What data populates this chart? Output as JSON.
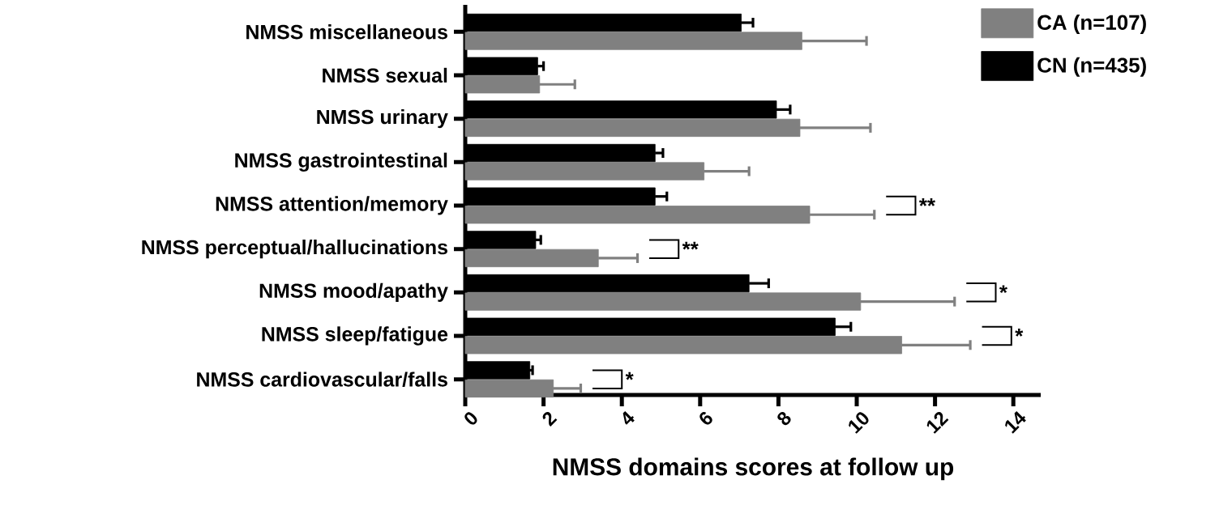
{
  "chart_data": {
    "type": "bar",
    "orientation": "horizontal",
    "xlabel": "NMSS domains scores at follow up",
    "categories": [
      "NMSS miscellaneous",
      "NMSS sexual",
      "NMSS urinary",
      "NMSS gastrointestinal",
      "NMSS attention/memory",
      "NMSS perceptual/hallucinations",
      "NMSS mood/apathy",
      "NMSS sleep/fatigue",
      "NMSS cardiovascular/falls"
    ],
    "series": [
      {
        "name": "CA (n=107)",
        "color": "#808080",
        "values": [
          8.6,
          1.9,
          8.55,
          6.1,
          8.8,
          3.4,
          10.1,
          11.15,
          2.25
        ],
        "errors": [
          1.65,
          0.9,
          1.8,
          1.15,
          1.65,
          1.0,
          2.4,
          1.75,
          0.7
        ]
      },
      {
        "name": "CN (n=435)",
        "color": "#000000",
        "values": [
          7.05,
          1.85,
          7.95,
          4.85,
          4.85,
          1.8,
          7.25,
          9.45,
          1.65
        ],
        "errors": [
          0.3,
          0.15,
          0.35,
          0.2,
          0.3,
          0.13,
          0.5,
          0.4,
          0.07
        ]
      }
    ],
    "xlim": [
      0,
      14.7
    ],
    "xticks": [
      0,
      2,
      4,
      6,
      8,
      10,
      12,
      14
    ],
    "annotations": [
      "**",
      "**",
      "*",
      "*",
      "*"
    ],
    "legend": "top right"
  }
}
